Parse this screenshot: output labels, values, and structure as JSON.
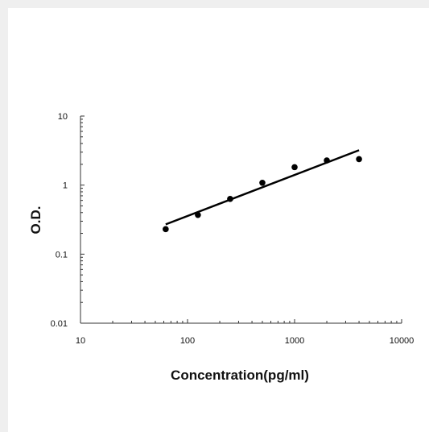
{
  "chart_data": {
    "type": "scatter",
    "xlabel": "Concentration(pg/ml)",
    "ylabel": "O.D.",
    "xscale": "log",
    "yscale": "log",
    "xlim": [
      10,
      10000
    ],
    "ylim": [
      0.01,
      10
    ],
    "x_tick_labels": [
      "10",
      "100",
      "1000",
      "10000"
    ],
    "y_tick_labels": [
      "0.01",
      "0.1",
      "1",
      "10"
    ],
    "grid": false,
    "series": [
      {
        "points": [
          {
            "x": 62.5,
            "y": 0.23
          },
          {
            "x": 125,
            "y": 0.37
          },
          {
            "x": 250,
            "y": 0.63
          },
          {
            "x": 500,
            "y": 1.08
          },
          {
            "x": 1000,
            "y": 1.82
          },
          {
            "x": 2000,
            "y": 2.28
          },
          {
            "x": 4000,
            "y": 2.38
          }
        ],
        "color": "#000000"
      }
    ],
    "trendline": {
      "type": "power",
      "from": {
        "x": 62.5,
        "y": 0.27
      },
      "to": {
        "x": 4000,
        "y": 3.2
      },
      "color": "#000000"
    }
  }
}
